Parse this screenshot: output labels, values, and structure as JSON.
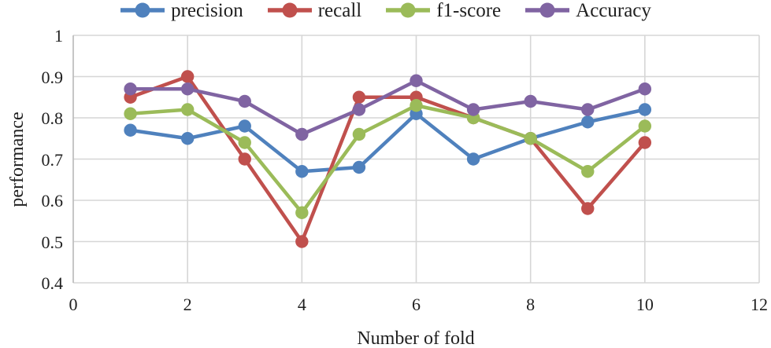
{
  "chart_data": {
    "type": "line",
    "title": "",
    "xlabel": "Number of fold",
    "ylabel": "performance",
    "x": [
      1,
      2,
      3,
      4,
      5,
      6,
      7,
      8,
      9,
      10
    ],
    "series": [
      {
        "name": "precision",
        "color": "#4F81BD",
        "values": [
          0.77,
          0.75,
          0.78,
          0.67,
          0.68,
          0.81,
          0.7,
          0.75,
          0.79,
          0.82
        ]
      },
      {
        "name": "recall",
        "color": "#C0504D",
        "values": [
          0.85,
          0.9,
          0.7,
          0.5,
          0.85,
          0.85,
          0.8,
          0.75,
          0.58,
          0.74
        ]
      },
      {
        "name": "f1-score",
        "color": "#9BBB59",
        "values": [
          0.81,
          0.82,
          0.74,
          0.57,
          0.76,
          0.83,
          0.8,
          0.75,
          0.67,
          0.78
        ]
      },
      {
        "name": "Accuracy",
        "color": "#8064A2",
        "values": [
          0.87,
          0.87,
          0.84,
          0.76,
          0.82,
          0.89,
          0.82,
          0.84,
          0.82,
          0.87
        ]
      }
    ],
    "xlim": [
      0,
      12
    ],
    "ylim": [
      0.4,
      1.0
    ],
    "xticks": [
      "0",
      "2",
      "4",
      "6",
      "8",
      "10",
      "12"
    ],
    "xtick_values": [
      0,
      2,
      4,
      6,
      8,
      10,
      12
    ],
    "yticks": [
      "1",
      "0.9",
      "0.8",
      "0.7",
      "0.6",
      "0.5",
      "0.4"
    ],
    "ytick_values": [
      1.0,
      0.9,
      0.8,
      0.7,
      0.6,
      0.5,
      0.4
    ],
    "grid": "on",
    "legend_position": "top",
    "colors": {
      "gridline": "#D6D6D6",
      "axis_line": "#BFBFBF",
      "text": "#1F1F1F",
      "background": "#FFFFFF"
    }
  }
}
